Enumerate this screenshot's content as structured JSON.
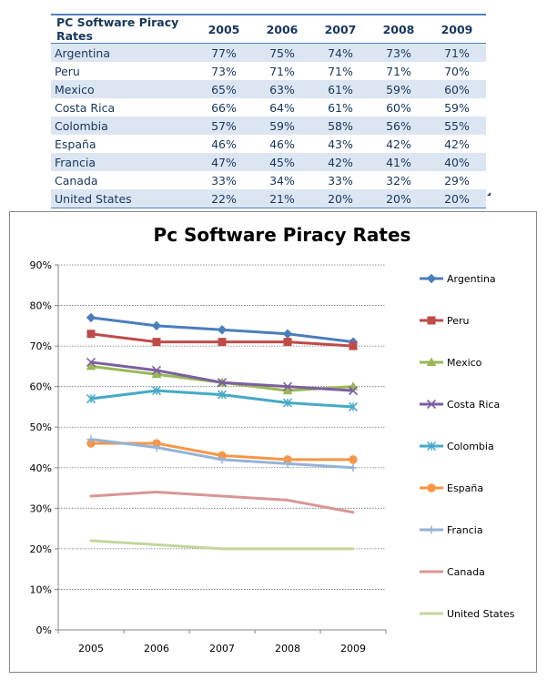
{
  "table": {
    "header": [
      "PC Software Piracy Rates",
      "2005",
      "2006",
      "2007",
      "2008",
      "2009"
    ],
    "rows": [
      {
        "country": "Argentina",
        "values": [
          "77%",
          "75%",
          "74%",
          "73%",
          "71%"
        ]
      },
      {
        "country": "Peru",
        "values": [
          "73%",
          "71%",
          "71%",
          "71%",
          "70%"
        ]
      },
      {
        "country": "Mexico",
        "values": [
          "65%",
          "63%",
          "61%",
          "59%",
          "60%"
        ]
      },
      {
        "country": "Costa Rica",
        "values": [
          "66%",
          "64%",
          "61%",
          "60%",
          "59%"
        ]
      },
      {
        "country": "Colombia",
        "values": [
          "57%",
          "59%",
          "58%",
          "56%",
          "55%"
        ]
      },
      {
        "country": "España",
        "values": [
          "46%",
          "46%",
          "43%",
          "42%",
          "42%"
        ]
      },
      {
        "country": "Francia",
        "values": [
          "47%",
          "45%",
          "42%",
          "41%",
          "40%"
        ]
      },
      {
        "country": "Canada",
        "values": [
          "33%",
          "34%",
          "33%",
          "32%",
          "29%"
        ]
      },
      {
        "country": "United States",
        "values": [
          "22%",
          "21%",
          "20%",
          "20%",
          "20%"
        ]
      }
    ]
  },
  "chart_data": {
    "type": "line",
    "title": "Pc Software Piracy Rates",
    "xlabel": "",
    "ylabel": "",
    "categories": [
      "2005",
      "2006",
      "2007",
      "2008",
      "2009"
    ],
    "ylim": [
      0,
      90
    ],
    "yticks": [
      0,
      10,
      20,
      30,
      40,
      50,
      60,
      70,
      80,
      90
    ],
    "ytick_labels": [
      "0%",
      "10%",
      "20%",
      "30%",
      "40%",
      "50%",
      "60%",
      "70%",
      "80%",
      "90%"
    ],
    "grid": true,
    "legend_position": "right",
    "series": [
      {
        "name": "Argentina",
        "values": [
          77,
          75,
          74,
          73,
          71
        ],
        "color": "#4a7ebb",
        "marker": "diamond"
      },
      {
        "name": "Peru",
        "values": [
          73,
          71,
          71,
          71,
          70
        ],
        "color": "#be4b48",
        "marker": "square"
      },
      {
        "name": "Mexico",
        "values": [
          65,
          63,
          61,
          59,
          60
        ],
        "color": "#98b954",
        "marker": "triangle"
      },
      {
        "name": "Costa Rica",
        "values": [
          66,
          64,
          61,
          60,
          59
        ],
        "color": "#7d5fa0",
        "marker": "x"
      },
      {
        "name": "Colombia",
        "values": [
          57,
          59,
          58,
          56,
          55
        ],
        "color": "#46aac5",
        "marker": "star"
      },
      {
        "name": "España",
        "values": [
          46,
          46,
          43,
          42,
          42
        ],
        "color": "#f79646",
        "marker": "circle"
      },
      {
        "name": "Francia",
        "values": [
          47,
          45,
          42,
          41,
          40
        ],
        "color": "#95b3d7",
        "marker": "plus"
      },
      {
        "name": "Canada",
        "values": [
          33,
          34,
          33,
          32,
          29
        ],
        "color": "#d99694",
        "marker": "none"
      },
      {
        "name": "United States",
        "values": [
          22,
          21,
          20,
          20,
          20
        ],
        "color": "#c3d69b",
        "marker": "none"
      }
    ]
  }
}
